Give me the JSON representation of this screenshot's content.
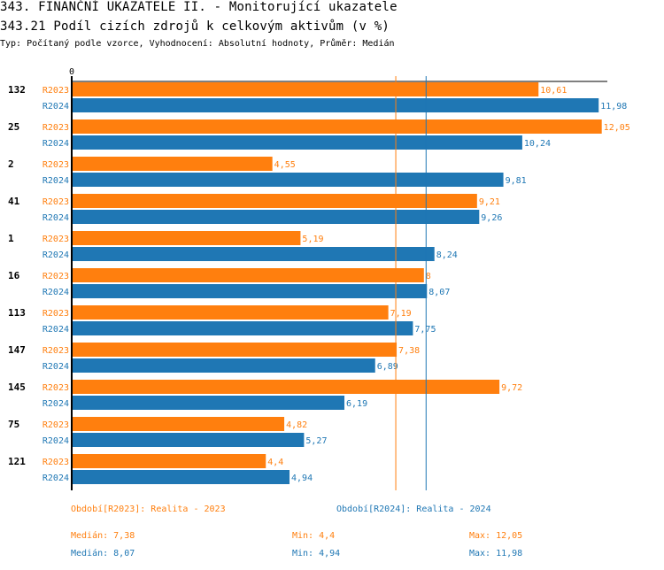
{
  "header": {
    "title": "343. FINANČNÍ UKAZATELE II. - Monitorující ukazatele",
    "subtitle": "343.21 Podíl cizích zdrojů k celkovým aktivům (v %)",
    "info": "Typ: Počítaný podle vzorce, Vyhodnocení: Absolutní hodnoty, Průměr: Medián"
  },
  "colors": {
    "R2023": "#ff7f0e",
    "R2024": "#1f77b4",
    "axis": "#000000"
  },
  "chart_data": {
    "type": "bar",
    "orientation": "horizontal",
    "title": "343.21 Podíl cizích zdrojů k celkovým aktivům (v %)",
    "xlabel": "",
    "ylabel": "",
    "x_tick_labels": [
      "0"
    ],
    "categories": [
      "132",
      "25",
      "2",
      "41",
      "1",
      "16",
      "113",
      "147",
      "145",
      "75",
      "121"
    ],
    "series": [
      {
        "name": "R2023",
        "labels": [
          "10,61",
          "12,05",
          "4,55",
          "9,21",
          "5,19",
          "8",
          "7,19",
          "7,38",
          "9,72",
          "4,82",
          "4,4"
        ],
        "values": [
          10.61,
          12.05,
          4.55,
          9.21,
          5.19,
          8,
          7.19,
          7.38,
          9.72,
          4.82,
          4.4
        ],
        "median": 7.38
      },
      {
        "name": "R2024",
        "labels": [
          "11,98",
          "10,24",
          "9,81",
          "9,26",
          "8,24",
          "8,07",
          "7,75",
          "6,89",
          "6,19",
          "5,27",
          "4,94"
        ],
        "values": [
          11.98,
          10.24,
          9.81,
          9.26,
          8.24,
          8.07,
          7.75,
          6.89,
          6.19,
          5.27,
          4.94
        ],
        "median": 8.07
      }
    ],
    "reference_lines": [
      {
        "series": "R2023",
        "type": "median",
        "value": 7.38
      },
      {
        "series": "R2024",
        "type": "median",
        "value": 8.07
      }
    ],
    "grid": false,
    "legend": "bottom"
  },
  "footer": {
    "legend_2023": "Období[R2023]: Realita - 2023",
    "legend_2024": "Období[R2024]: Realita - 2024",
    "stats_2023": {
      "median": "Medián: 7,38",
      "min": "Min: 4,4",
      "max": "Max: 12,05"
    },
    "stats_2024": {
      "median": "Medián: 8,07",
      "min": "Min: 4,94",
      "max": "Max: 11,98"
    }
  }
}
